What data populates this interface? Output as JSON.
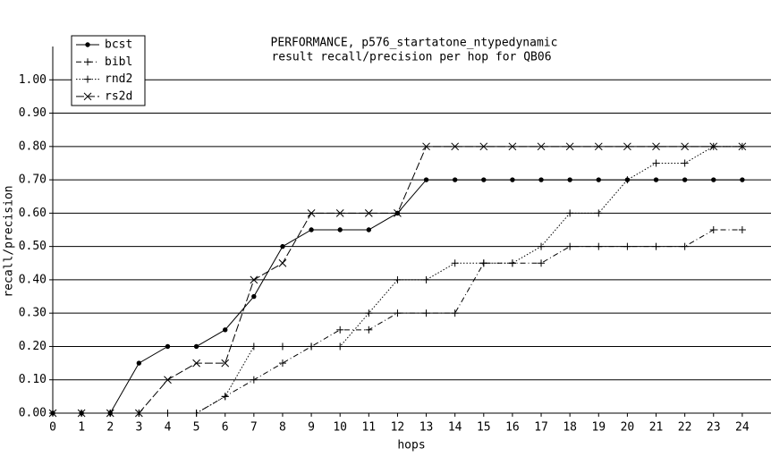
{
  "chart_data": {
    "type": "line",
    "title": "PERFORMANCE, p576_startatone_ntypedynamic",
    "subtitle": "result recall/precision per hop for QB06",
    "x_label": "hops",
    "y_label": "recall/precision",
    "x": [
      0,
      1,
      2,
      3,
      4,
      5,
      6,
      7,
      8,
      9,
      10,
      11,
      12,
      13,
      14,
      15,
      16,
      17,
      18,
      19,
      20,
      21,
      22,
      23,
      24
    ],
    "xlim": [
      0,
      25
    ],
    "xticks": [
      0,
      1,
      2,
      3,
      4,
      5,
      6,
      7,
      8,
      9,
      10,
      11,
      12,
      13,
      14,
      15,
      16,
      17,
      18,
      19,
      20,
      21,
      22,
      23,
      24
    ],
    "ylim": [
      0,
      1.1
    ],
    "yticks": [
      {
        "value": 0,
        "label": "0.00"
      },
      {
        "value": 0.1,
        "label": "0.10"
      },
      {
        "value": 0.2,
        "label": "0.20"
      },
      {
        "value": 0.3,
        "label": "0.30"
      },
      {
        "value": 0.4,
        "label": "0.40"
      },
      {
        "value": 0.5,
        "label": "0.50"
      },
      {
        "value": 0.6,
        "label": "0.60"
      },
      {
        "value": 0.7,
        "label": "0.70"
      },
      {
        "value": 0.8,
        "label": "0.80"
      },
      {
        "value": 0.9,
        "label": "0.90"
      },
      {
        "value": 1,
        "label": "1.00"
      }
    ],
    "grid": true,
    "legend": "top-left",
    "series": [
      {
        "name": "bcst",
        "color": "#000000",
        "line_style": "solid",
        "marker": "dot",
        "values": [
          0,
          0,
          0,
          0.15,
          0.2,
          0.2,
          0.25,
          0.35,
          0.5,
          0.55,
          0.55,
          0.55,
          0.6,
          0.7,
          0.7,
          0.7,
          0.7,
          0.7,
          0.7,
          0.7,
          0.7,
          0.7,
          0.7,
          0.7,
          0.7
        ]
      },
      {
        "name": "bibl",
        "color": "#000000",
        "line_style": "dashed",
        "marker": "plus",
        "values": [
          0,
          0,
          0,
          0,
          0,
          0,
          0.05,
          0.1,
          0.15,
          0.2,
          0.25,
          0.25,
          0.3,
          0.3,
          0.3,
          0.45,
          0.45,
          0.45,
          0.5,
          0.5,
          0.5,
          0.5,
          0.5,
          0.55,
          0.55
        ]
      },
      {
        "name": "rnd2",
        "color": "#000000",
        "line_style": "dotted",
        "marker": "plus",
        "values": [
          0,
          0,
          0,
          0,
          0,
          0,
          0.05,
          0.2,
          0.2,
          0.2,
          0.2,
          0.3,
          0.4,
          0.4,
          0.45,
          0.45,
          0.45,
          0.5,
          0.6,
          0.6,
          0.7,
          0.75,
          0.75,
          0.8,
          0.8
        ]
      },
      {
        "name": "rs2d",
        "color": "#000000",
        "line_style": "longdash",
        "marker": "cross",
        "values": [
          0,
          0,
          0,
          0,
          0.1,
          0.15,
          0.15,
          0.4,
          0.45,
          0.6,
          0.6,
          0.6,
          0.6,
          0.8,
          0.8,
          0.8,
          0.8,
          0.8,
          0.8,
          0.8,
          0.8,
          0.8,
          0.8,
          0.8,
          0.8
        ]
      }
    ]
  }
}
